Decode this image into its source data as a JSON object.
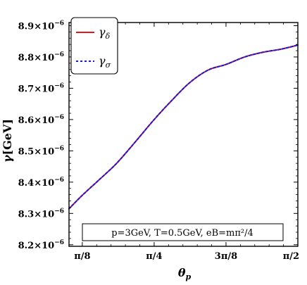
{
  "chart_data": {
    "type": "line",
    "title": "",
    "xlabel": "θp",
    "ylabel": "γ[GeV]",
    "x_unit_note": "radians",
    "xlim": [
      0.32,
      1.5708
    ],
    "ylim": [
      8.195e-06,
      8.91e-06
    ],
    "grid": false,
    "legend_position": "top-left",
    "x_ticks": [
      {
        "value": 0.3927,
        "label": "π/8"
      },
      {
        "value": 0.7854,
        "label": "π/4"
      },
      {
        "value": 1.1781,
        "label": "3π/8"
      },
      {
        "value": 1.5708,
        "label": "π/2"
      }
    ],
    "y_ticks": [
      {
        "value": 8.2e-06,
        "label": "8.2×10",
        "exp": "−6"
      },
      {
        "value": 8.3e-06,
        "label": "8.3×10",
        "exp": "−6"
      },
      {
        "value": 8.4e-06,
        "label": "8.4×10",
        "exp": "−6"
      },
      {
        "value": 8.5e-06,
        "label": "8.5×10",
        "exp": "−6"
      },
      {
        "value": 8.6e-06,
        "label": "8.6×10",
        "exp": "−6"
      },
      {
        "value": 8.7e-06,
        "label": "8.7×10",
        "exp": "−6"
      },
      {
        "value": 8.8e-06,
        "label": "8.8×10",
        "exp": "−6"
      },
      {
        "value": 8.9e-06,
        "label": "8.9×10",
        "exp": "−6"
      }
    ],
    "x": [
      0.32,
      0.3927,
      0.48,
      0.58,
      0.68,
      0.7854,
      0.88,
      0.98,
      1.08,
      1.1781,
      1.28,
      1.38,
      1.48,
      1.5708
    ],
    "series": [
      {
        "name": "γδ",
        "color": "#e8141e",
        "dash": "solid",
        "values": [
          8.315e-06,
          8.358e-06,
          8.405e-06,
          8.46e-06,
          8.527e-06,
          8.6e-06,
          8.66e-06,
          8.718e-06,
          8.758e-06,
          8.776e-06,
          8.8e-06,
          8.815e-06,
          8.825e-06,
          8.838e-06
        ]
      },
      {
        "name": "γσ",
        "color": "#1a1ad6",
        "dash": "dotted",
        "values": [
          8.315e-06,
          8.358e-06,
          8.405e-06,
          8.46e-06,
          8.527e-06,
          8.6e-06,
          8.66e-06,
          8.718e-06,
          8.758e-06,
          8.776e-06,
          8.8e-06,
          8.815e-06,
          8.825e-06,
          8.838e-06
        ]
      }
    ],
    "legend": [
      {
        "symbol": "γ",
        "sub": "δ"
      },
      {
        "symbol": "γ",
        "sub": "σ"
      }
    ],
    "annotation": "p=3GeV, T=0.5GeV, eB=mπ²/4",
    "annotation_position": "bottom-right"
  }
}
